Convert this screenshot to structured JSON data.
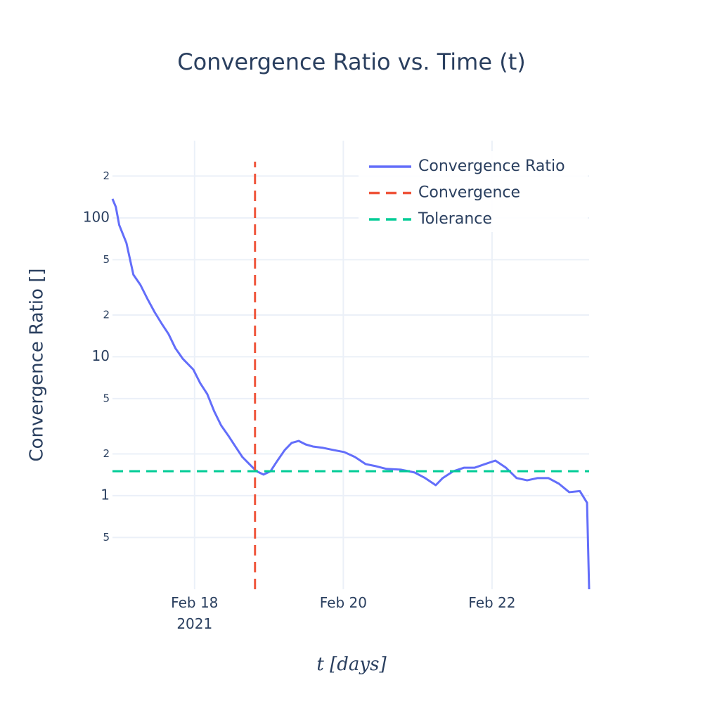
{
  "chart_data": {
    "type": "line",
    "title": "Convergence Ratio vs. Time (t)",
    "x_label": "t [days]",
    "y_label": "Convergence Ratio []",
    "log_y": true,
    "grid": true,
    "legend": "top-right",
    "xlim": [
      "2021-02-16T21:30",
      "2021-02-23T07:20"
    ],
    "xticks": [
      {
        "value": "2021-02-18T00:00",
        "label": "Feb 18\n2021"
      },
      {
        "value": "2021-02-20T00:00",
        "label": "Feb 20"
      },
      {
        "value": "2021-02-22T00:00",
        "label": "Feb 22"
      }
    ],
    "ylim": [
      0.212,
      360
    ],
    "yticks": [
      {
        "value": 200,
        "label": "2"
      },
      100,
      {
        "value": 50,
        "label": "5"
      },
      {
        "value": 20,
        "label": "2"
      },
      10,
      5,
      2,
      1,
      {
        "value": 0.5,
        "label": "5"
      }
    ],
    "series": [
      {
        "name": "Convergence Ratio",
        "color": "#636efa",
        "dash": "solid",
        "x": [
          "2021-02-16T21:30",
          "2021-02-16T22:35",
          "2021-02-16T23:40",
          "2021-02-17T02:00",
          "2021-02-17T04:15",
          "2021-02-17T06:30",
          "2021-02-17T08:50",
          "2021-02-17T11:05",
          "2021-02-17T13:20",
          "2021-02-17T15:35",
          "2021-02-17T17:50",
          "2021-02-17T20:10",
          "2021-02-17T23:35",
          "2021-02-18T01:50",
          "2021-02-18T04:05",
          "2021-02-18T06:20",
          "2021-02-18T08:35",
          "2021-02-18T10:55",
          "2021-02-18T13:10",
          "2021-02-18T15:25",
          "2021-02-18T17:40",
          "2021-02-18T20:00",
          "2021-02-18T22:15",
          "2021-02-19T00:30",
          "2021-02-19T02:45",
          "2021-02-19T05:05",
          "2021-02-19T07:20",
          "2021-02-19T09:35",
          "2021-02-19T11:50",
          "2021-02-19T14:10",
          "2021-02-19T17:30",
          "2021-02-19T20:55",
          "2021-02-20T00:20",
          "2021-02-20T03:45",
          "2021-02-20T07:10",
          "2021-02-20T10:35",
          "2021-02-20T13:55",
          "2021-02-20T18:30",
          "2021-02-20T23:00",
          "2021-02-21T02:25",
          "2021-02-21T05:50",
          "2021-02-21T08:05",
          "2021-02-21T11:30",
          "2021-02-21T14:55",
          "2021-02-21T18:20",
          "2021-02-21T21:45",
          "2021-02-22T01:05",
          "2021-02-22T04:30",
          "2021-02-22T07:55",
          "2021-02-22T11:20",
          "2021-02-22T14:45",
          "2021-02-22T18:10",
          "2021-02-22T21:35",
          "2021-02-23T00:55",
          "2021-02-23T04:20",
          "2021-02-23T06:40",
          "2021-02-23T07:20"
        ],
        "values": [
          137,
          120,
          89,
          66,
          39,
          33,
          26,
          21,
          17.4,
          14.6,
          11.5,
          9.7,
          8.1,
          6.45,
          5.4,
          4.05,
          3.2,
          2.7,
          2.26,
          1.9,
          1.69,
          1.5,
          1.42,
          1.5,
          1.79,
          2.13,
          2.4,
          2.48,
          2.34,
          2.26,
          2.21,
          2.13,
          2.06,
          1.9,
          1.69,
          1.63,
          1.56,
          1.54,
          1.47,
          1.34,
          1.19,
          1.34,
          1.5,
          1.59,
          1.59,
          1.69,
          1.79,
          1.59,
          1.34,
          1.29,
          1.34,
          1.34,
          1.22,
          1.06,
          1.08,
          0.89,
          0.212
        ]
      },
      {
        "name": "Convergence",
        "color": "#EF553B",
        "dash": "dash",
        "x": [
          "2021-02-18T19:30",
          "2021-02-18T19:30"
        ],
        "values": [
          0.212,
          254
        ]
      },
      {
        "name": "Tolerance",
        "color": "#00cc96",
        "dash": "dash",
        "x": [
          "2021-02-16T21:30",
          "2021-02-23T07:20"
        ],
        "values": [
          1.5,
          1.5
        ]
      }
    ]
  }
}
